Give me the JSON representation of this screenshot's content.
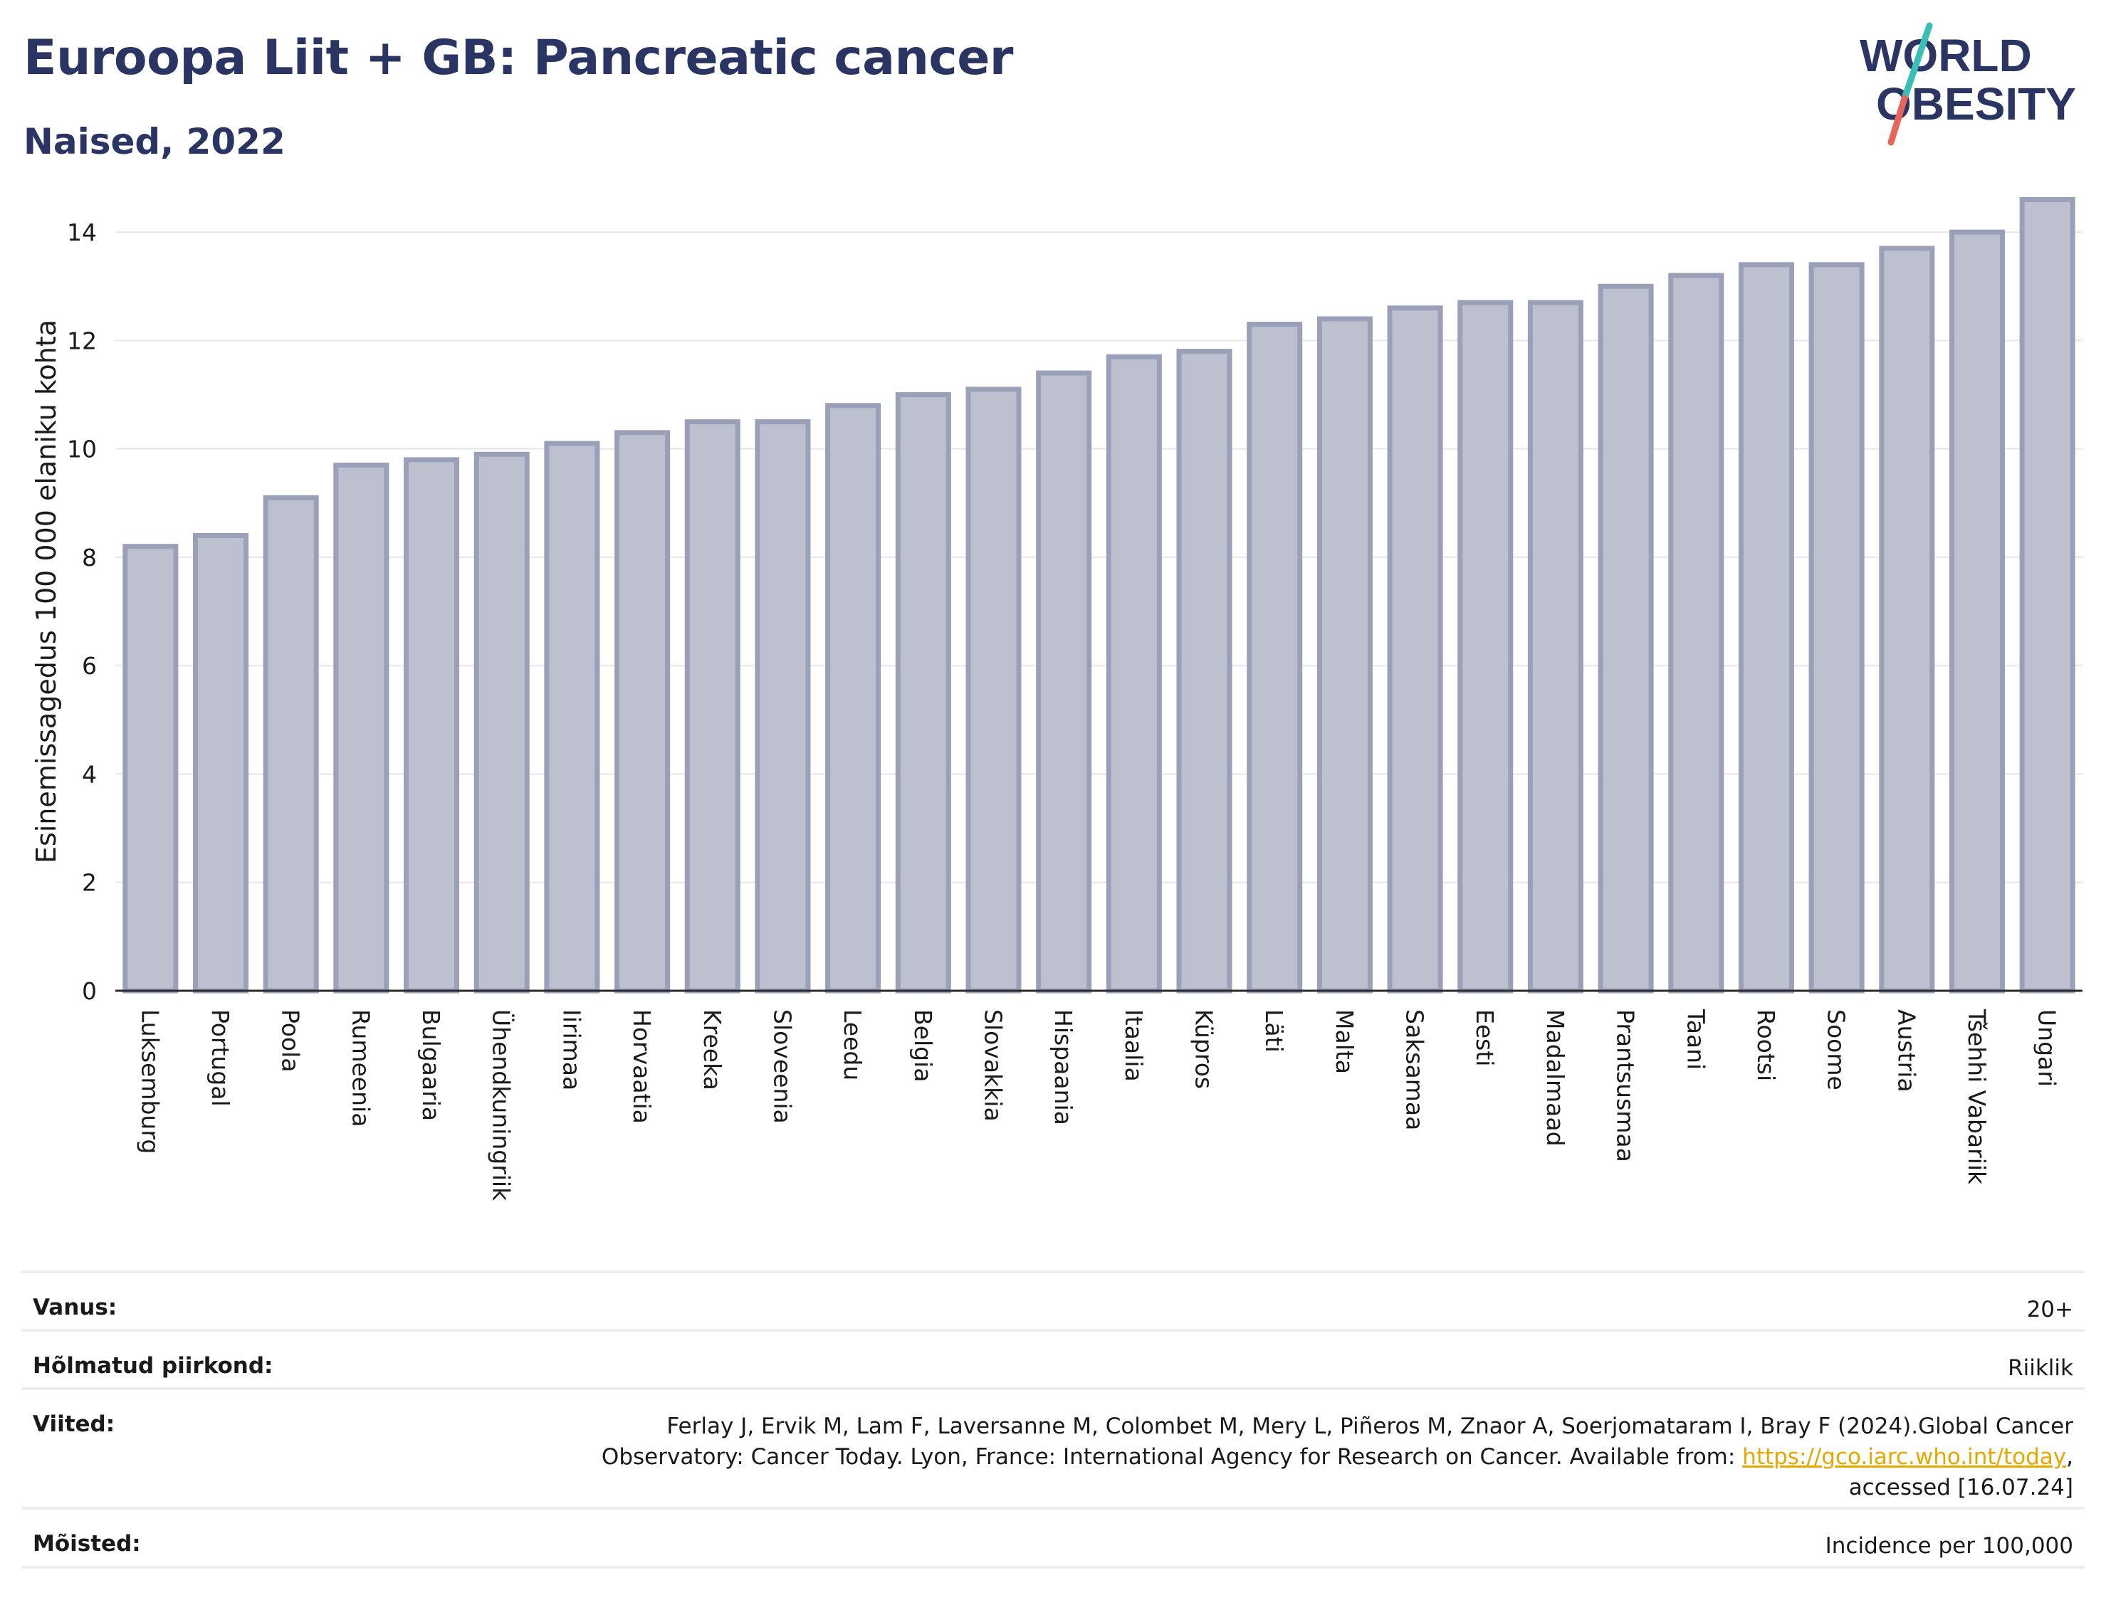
{
  "header": {
    "title": "Euroopa Liit + GB: Pancreatic cancer",
    "subtitle": "Naised, 2022"
  },
  "logo": {
    "line1": "WORLD",
    "line2": "OBESITY"
  },
  "colors": {
    "bar_fill": "#bdc0ce",
    "bar_stroke": "#9aa0b8",
    "title": "#2a3563",
    "logo_text": "#2a3563",
    "logo_slash_top": "#3bbfb4",
    "logo_slash_bottom": "#e8655a",
    "link": "#e6a800"
  },
  "chart_data": {
    "type": "bar",
    "ylabel": "Esinemissagedus 100 000 elaniku kohta",
    "ylim": [
      0,
      15
    ],
    "yticks": [
      0,
      2,
      4,
      6,
      8,
      10,
      12,
      14
    ],
    "grid": true,
    "categories": [
      "Luksemburg",
      "Portugal",
      "Poola",
      "Rumeenia",
      "Bulgaaria",
      "Ühendkuningriik",
      "Iirimaa",
      "Horvaatia",
      "Kreeka",
      "Sloveenia",
      "Leedu",
      "Belgia",
      "Slovakkia",
      "Hispaania",
      "Itaalia",
      "Küpros",
      "Läti",
      "Malta",
      "Saksamaa",
      "Eesti",
      "Madalmaad",
      "Prantsusmaa",
      "Taani",
      "Rootsi",
      "Soome",
      "Austria",
      "Tšehhi Vabariik",
      "Ungari"
    ],
    "values": [
      8.2,
      8.4,
      9.1,
      9.7,
      9.8,
      9.9,
      10.1,
      10.3,
      10.5,
      10.5,
      10.8,
      11.0,
      11.1,
      11.4,
      11.7,
      11.8,
      12.3,
      12.4,
      12.6,
      12.7,
      12.7,
      13.0,
      13.2,
      13.4,
      13.4,
      13.7,
      14.0,
      14.6
    ]
  },
  "info": {
    "age_label": "Vanus:",
    "age_value": "20+",
    "region_label": "Hõlmatud piirkond:",
    "region_value": "Riiklik",
    "refs_label": "Viited:",
    "refs_line1": "Ferlay J, Ervik M, Lam F, Laversanne M, Colombet M, Mery L, Piñeros M, Znaor A, Soerjomataram I, Bray F (2024).Global Cancer",
    "refs_line2_pre": "Observatory: Cancer Today. Lyon, France: International Agency for Research on Cancer. Available from: ",
    "refs_link": "https://gco.iarc.who.int/today",
    "refs_line2_post": ",",
    "refs_line3": "accessed [16.07.24]",
    "def_label": "Mõisted:",
    "def_value": "Incidence per 100,000"
  }
}
